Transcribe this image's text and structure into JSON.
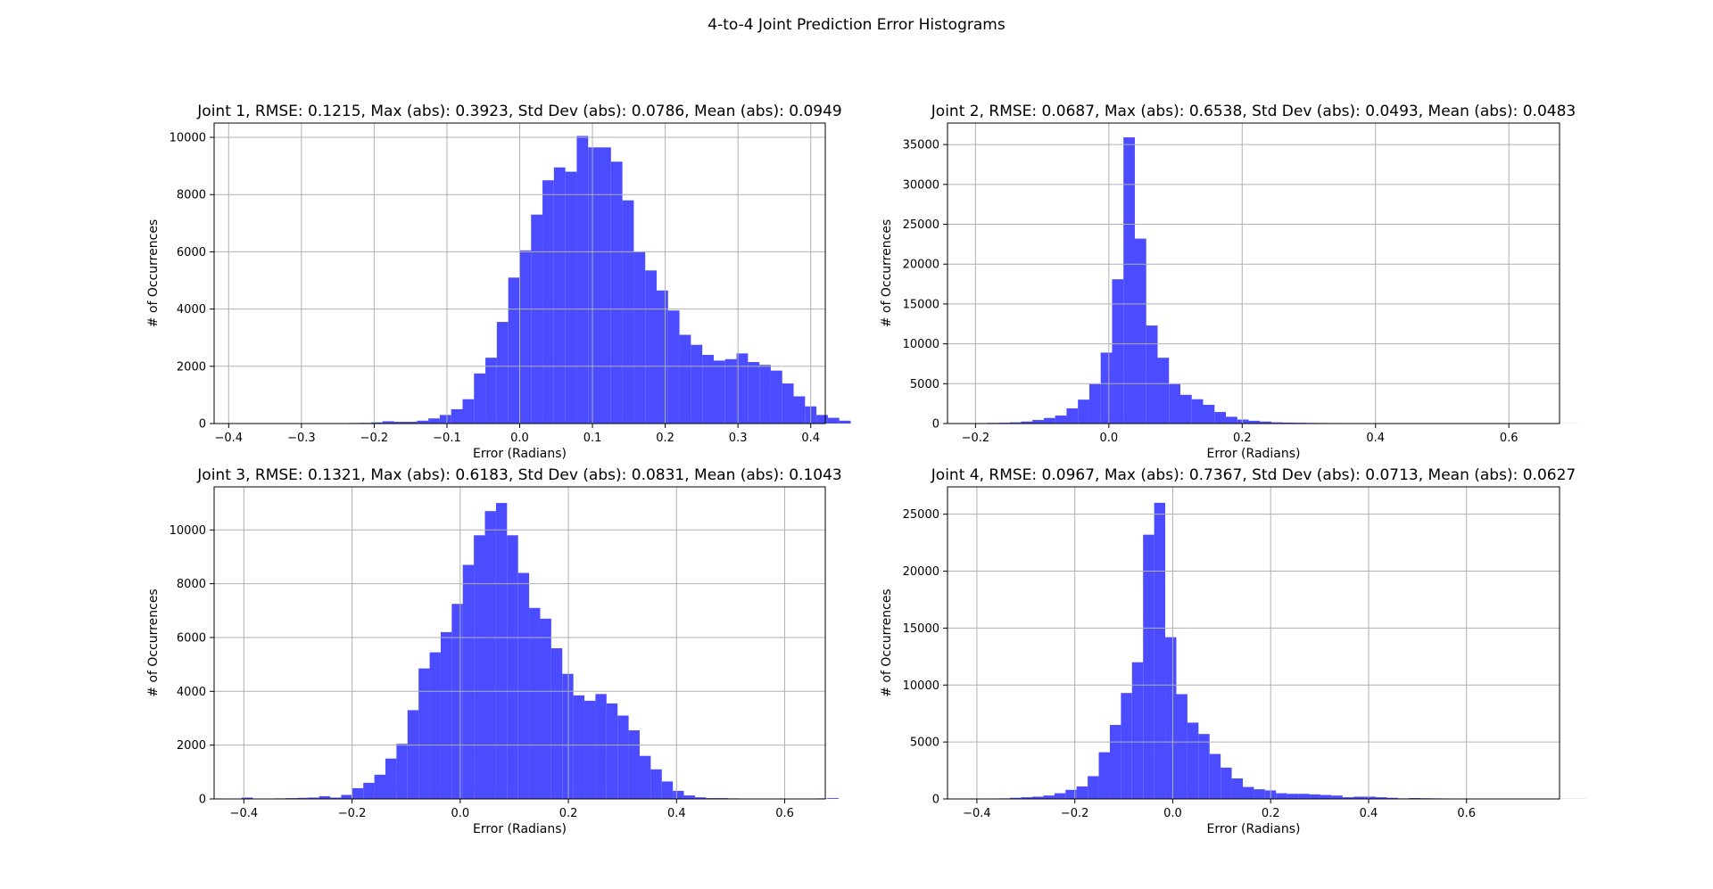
{
  "figure": {
    "suptitle": "4-to-4 Joint Prediction Error Histograms",
    "bar_color": "#4b4bff",
    "grid_color": "#b0b0b0"
  },
  "chart_data": [
    {
      "type": "bar",
      "title": "Joint 1, RMSE: 0.1215, Max (abs): 0.3923, Std Dev (abs): 0.0786, Mean (abs): 0.0949",
      "xlabel": "Error (Radians)",
      "ylabel": "# of Occurrences",
      "xlim": [
        -0.42,
        0.42
      ],
      "ylim": [
        0,
        10500
      ],
      "xticks": [
        -0.4,
        -0.3,
        -0.2,
        -0.1,
        0.0,
        0.1,
        0.2,
        0.3,
        0.4
      ],
      "xtick_labels": [
        "−0.4",
        "−0.3",
        "−0.2",
        "−0.1",
        "0.0",
        "0.1",
        "0.2",
        "0.3",
        "0.4"
      ],
      "yticks": [
        0,
        2000,
        4000,
        6000,
        8000,
        10000
      ],
      "ytick_labels": [
        "0",
        "2000",
        "4000",
        "6000",
        "8000",
        "10000"
      ],
      "grid": true,
      "bin_start": -0.3923,
      "bin_width": 0.01569,
      "values": [
        5,
        5,
        5,
        5,
        10,
        10,
        10,
        10,
        15,
        15,
        20,
        25,
        40,
        80,
        60,
        60,
        100,
        180,
        300,
        500,
        850,
        1750,
        2300,
        3550,
        5100,
        6050,
        7300,
        8500,
        8950,
        8800,
        10050,
        9650,
        9650,
        9150,
        7800,
        6000,
        5350,
        4650,
        3950,
        3100,
        2750,
        2400,
        2200,
        2250,
        2450,
        2150,
        2050,
        1850,
        1400,
        950,
        600,
        300,
        200,
        100
      ]
    },
    {
      "type": "bar",
      "title": "Joint 2, RMSE: 0.0687, Max (abs): 0.6538, Std Dev (abs): 0.0493, Mean (abs): 0.0483",
      "xlabel": "Error (Radians)",
      "ylabel": "# of Occurrences",
      "xlim": [
        -0.242,
        0.676
      ],
      "ylim": [
        0,
        37700
      ],
      "xticks": [
        -0.2,
        0.0,
        0.2,
        0.4,
        0.6
      ],
      "xtick_labels": [
        "−0.2",
        "0.0",
        "0.2",
        "0.4",
        "0.6"
      ],
      "yticks": [
        0,
        5000,
        10000,
        15000,
        20000,
        25000,
        30000,
        35000
      ],
      "ytick_labels": [
        "0",
        "5000",
        "10000",
        "15000",
        "20000",
        "25000",
        "30000",
        "35000"
      ],
      "grid": true,
      "bin_start": -0.2,
      "bin_width": 0.01707,
      "values": [
        50,
        80,
        100,
        150,
        250,
        450,
        700,
        1000,
        1900,
        3000,
        4950,
        8900,
        18100,
        35900,
        23200,
        12300,
        8250,
        4950,
        3600,
        3050,
        2350,
        1450,
        850,
        500,
        350,
        250,
        150,
        120,
        100,
        80,
        70,
        60,
        50,
        40,
        40,
        40,
        35,
        30,
        30,
        30,
        30,
        25,
        25,
        25,
        20,
        20,
        20,
        20,
        20,
        15,
        15,
        10,
        10
      ]
    },
    {
      "type": "bar",
      "title": "Joint 3, RMSE: 0.1321, Max (abs): 0.6183, Std Dev (abs): 0.0831, Mean (abs): 0.1043",
      "xlabel": "Error (Radians)",
      "ylabel": "# of Occurrences",
      "xlim": [
        -0.455,
        0.675
      ],
      "ylim": [
        0,
        11600
      ],
      "xticks": [
        -0.4,
        -0.2,
        0.0,
        0.2,
        0.4,
        0.6
      ],
      "xtick_labels": [
        "−0.4",
        "−0.2",
        "0.0",
        "0.2",
        "0.4",
        "0.6"
      ],
      "yticks": [
        0,
        2000,
        4000,
        6000,
        8000,
        10000
      ],
      "ytick_labels": [
        "0",
        "2000",
        "4000",
        "6000",
        "8000",
        "10000"
      ],
      "grid": true,
      "bin_start": -0.404,
      "bin_width": 0.02044,
      "values": [
        50,
        0,
        0,
        20,
        30,
        40,
        50,
        100,
        50,
        150,
        400,
        600,
        900,
        1500,
        2050,
        3300,
        4850,
        5450,
        6200,
        7250,
        8700,
        9800,
        10700,
        11000,
        9800,
        8400,
        7100,
        6700,
        5600,
        4650,
        3850,
        3650,
        3900,
        3550,
        3100,
        2550,
        1600,
        1100,
        650,
        300,
        130,
        60,
        30,
        30,
        20,
        0,
        0,
        0,
        0,
        0,
        0,
        10,
        20,
        30
      ]
    },
    {
      "type": "bar",
      "title": "Joint 4, RMSE: 0.0967, Max (abs): 0.7367, Std Dev (abs): 0.0713, Mean (abs): 0.0627",
      "xlabel": "Error (Radians)",
      "ylabel": "# of Occurrences",
      "xlim": [
        -0.46,
        0.79
      ],
      "ylim": [
        0,
        27400
      ],
      "xticks": [
        -0.4,
        -0.2,
        0.0,
        0.2,
        0.4,
        0.6
      ],
      "xtick_labels": [
        "−0.4",
        "−0.2",
        "0.0",
        "0.2",
        "0.4",
        "0.6"
      ],
      "yticks": [
        0,
        5000,
        10000,
        15000,
        20000,
        25000
      ],
      "ytick_labels": [
        "0",
        "5000",
        "10000",
        "15000",
        "20000",
        "25000"
      ],
      "grid": true,
      "bin_start": -0.4,
      "bin_width": 0.02263,
      "values": [
        20,
        40,
        50,
        100,
        150,
        200,
        300,
        500,
        800,
        1100,
        2000,
        4100,
        6500,
        9300,
        12000,
        23200,
        26000,
        14200,
        9200,
        6700,
        5700,
        3950,
        2750,
        1800,
        1050,
        850,
        750,
        500,
        450,
        450,
        400,
        350,
        300,
        150,
        200,
        200,
        150,
        100,
        50,
        80,
        60,
        50,
        40,
        30,
        30,
        20,
        20,
        15,
        15,
        10,
        10,
        10,
        10,
        10,
        10
      ]
    }
  ]
}
